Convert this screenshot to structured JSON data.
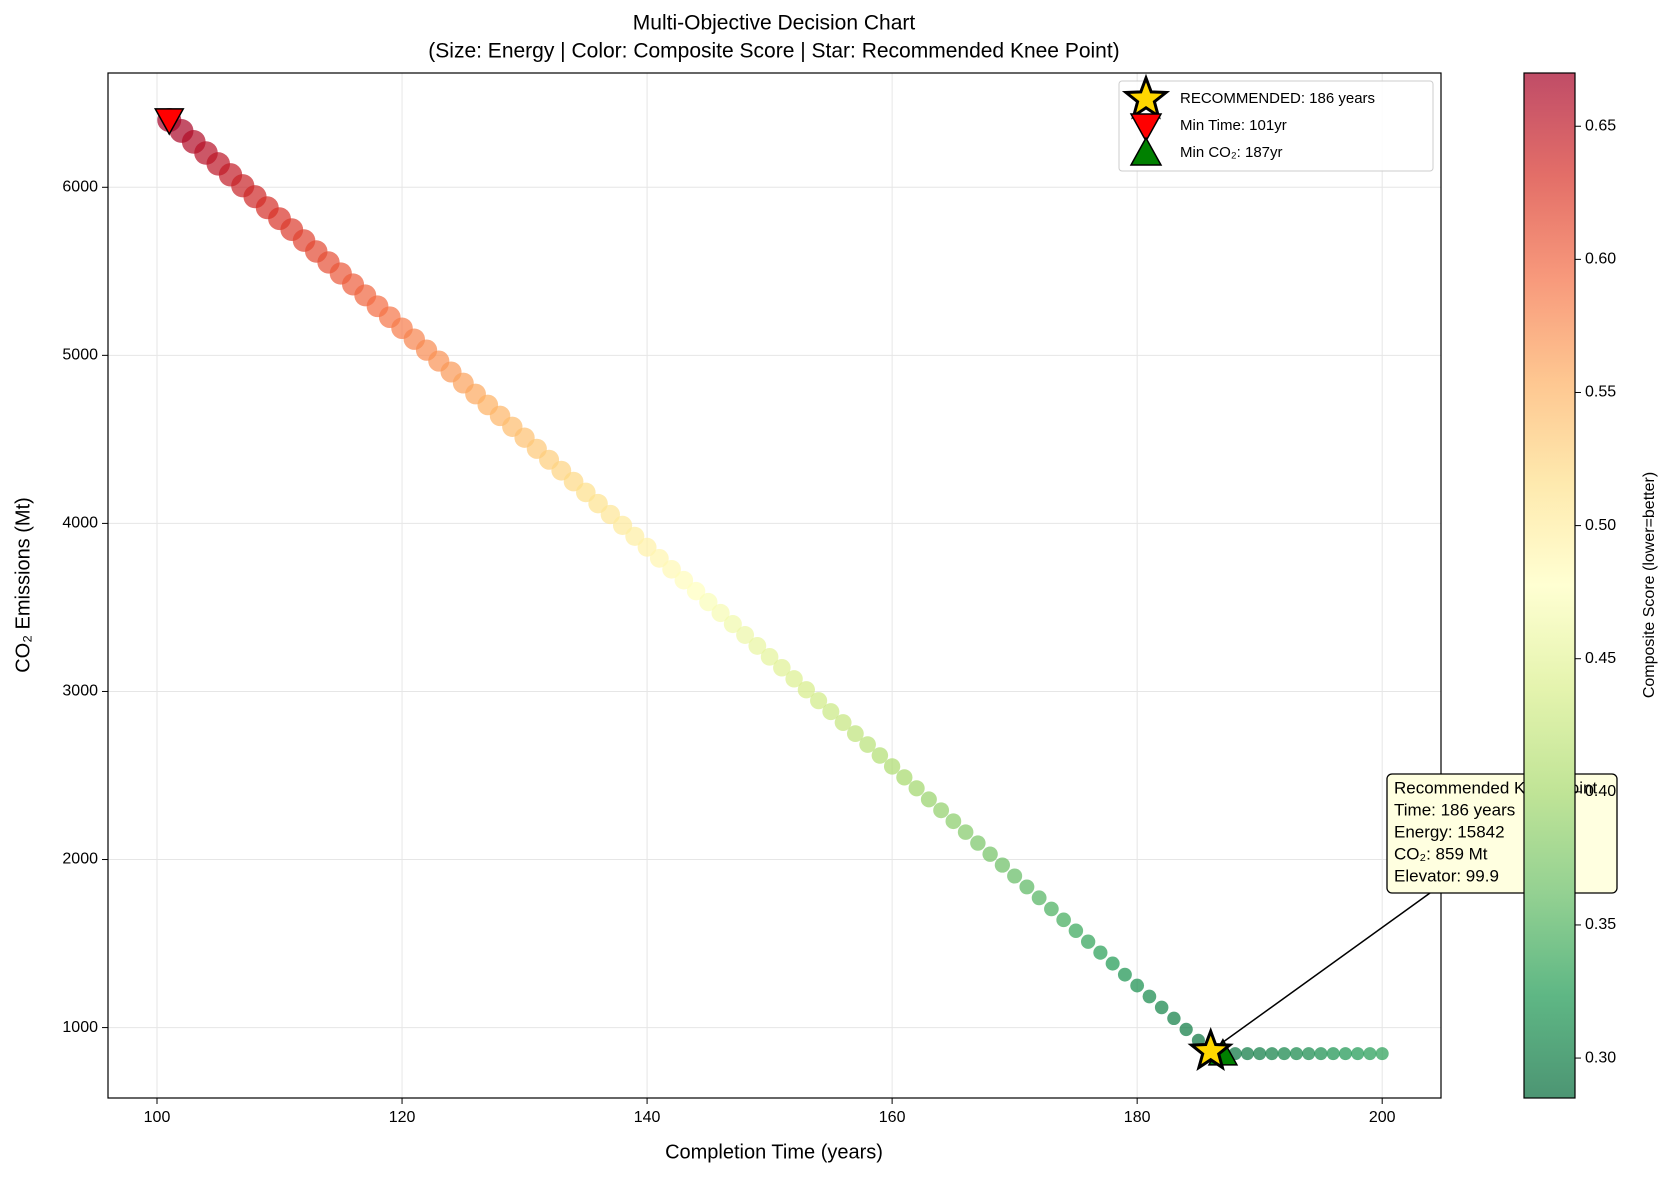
{
  "chart_data": {
    "type": "scatter",
    "title": "Multi-Objective Decision Chart",
    "subtitle": "(Size: Energy | Color: Composite Score | Star: Recommended Knee Point)",
    "xlabel": "Completion Time (years)",
    "ylabel": "CO₂ Emissions (Mt)",
    "xlim": [
      96,
      204.8
    ],
    "ylim": [
      581,
      6680
    ],
    "xticks": [
      100,
      120,
      140,
      160,
      180,
      200
    ],
    "yticks": [
      1000,
      2000,
      3000,
      4000,
      5000,
      6000
    ],
    "grid": true,
    "x": [
      101,
      102,
      103,
      104,
      105,
      106,
      107,
      108,
      109,
      110,
      111,
      112,
      113,
      114,
      115,
      116,
      117,
      118,
      119,
      120,
      121,
      122,
      123,
      124,
      125,
      126,
      127,
      128,
      129,
      130,
      131,
      132,
      133,
      134,
      135,
      136,
      137,
      138,
      139,
      140,
      141,
      142,
      143,
      144,
      145,
      146,
      147,
      148,
      149,
      150,
      151,
      152,
      153,
      154,
      155,
      156,
      157,
      158,
      159,
      160,
      161,
      162,
      163,
      164,
      165,
      166,
      167,
      168,
      169,
      170,
      171,
      172,
      173,
      174,
      175,
      176,
      177,
      178,
      179,
      180,
      181,
      182,
      183,
      184,
      185,
      186,
      187,
      188,
      189,
      190,
      191,
      192,
      193,
      194,
      195,
      196,
      197,
      198,
      199,
      200
    ],
    "y": [
      6400,
      6335,
      6270,
      6204,
      6139,
      6074,
      6009,
      5944,
      5878,
      5813,
      5748,
      5683,
      5618,
      5553,
      5487,
      5422,
      5357,
      5292,
      5227,
      5161,
      5096,
      5031,
      4966,
      4901,
      4835,
      4770,
      4705,
      4640,
      4575,
      4510,
      4444,
      4379,
      4314,
      4249,
      4184,
      4118,
      4053,
      3988,
      3923,
      3858,
      3792,
      3727,
      3662,
      3597,
      3532,
      3467,
      3401,
      3336,
      3271,
      3206,
      3141,
      3075,
      3010,
      2945,
      2880,
      2815,
      2749,
      2684,
      2619,
      2554,
      2489,
      2424,
      2358,
      2293,
      2228,
      2163,
      2098,
      2032,
      1967,
      1902,
      1837,
      1772,
      1706,
      1641,
      1576,
      1511,
      1446,
      1381,
      1315,
      1250,
      1185,
      1120,
      1055,
      989,
      924,
      859,
      845,
      845,
      845,
      845,
      845,
      845,
      845,
      845,
      845,
      845,
      845,
      845,
      845,
      845
    ],
    "energy": [
      40000,
      39700,
      39400,
      39100,
      38900,
      38600,
      38300,
      38000,
      37700,
      37400,
      37200,
      36900,
      36600,
      36300,
      36000,
      35700,
      35500,
      35200,
      34900,
      34600,
      34300,
      34000,
      33700,
      33500,
      33200,
      32900,
      32600,
      32300,
      32000,
      31800,
      31500,
      31200,
      30900,
      30600,
      30300,
      30100,
      29800,
      29500,
      29200,
      28900,
      28600,
      28300,
      28100,
      27800,
      27500,
      27200,
      26900,
      26600,
      26400,
      26100,
      25800,
      25500,
      25200,
      24900,
      24700,
      24400,
      24100,
      23800,
      23500,
      23200,
      22900,
      22700,
      22400,
      22100,
      21800,
      21500,
      21200,
      21000,
      20700,
      20400,
      20100,
      19800,
      19500,
      19300,
      19000,
      18700,
      18400,
      18100,
      17800,
      17500,
      17300,
      17000,
      16700,
      16400,
      16100,
      15842,
      15800,
      15800,
      15800,
      15800,
      15800,
      15800,
      15800,
      15800,
      15800,
      15800,
      15800,
      15800,
      15800,
      15800
    ],
    "score": [
      0.67,
      0.666,
      0.661,
      0.657,
      0.652,
      0.648,
      0.643,
      0.639,
      0.634,
      0.63,
      0.625,
      0.621,
      0.616,
      0.612,
      0.607,
      0.603,
      0.598,
      0.594,
      0.589,
      0.585,
      0.58,
      0.576,
      0.571,
      0.567,
      0.562,
      0.558,
      0.553,
      0.549,
      0.544,
      0.54,
      0.535,
      0.531,
      0.526,
      0.522,
      0.517,
      0.513,
      0.508,
      0.504,
      0.499,
      0.495,
      0.49,
      0.486,
      0.481,
      0.477,
      0.472,
      0.468,
      0.463,
      0.459,
      0.454,
      0.45,
      0.445,
      0.441,
      0.436,
      0.432,
      0.427,
      0.423,
      0.418,
      0.414,
      0.409,
      0.405,
      0.4,
      0.396,
      0.391,
      0.387,
      0.382,
      0.378,
      0.373,
      0.369,
      0.364,
      0.36,
      0.355,
      0.351,
      0.346,
      0.342,
      0.337,
      0.333,
      0.328,
      0.324,
      0.319,
      0.315,
      0.31,
      0.306,
      0.301,
      0.297,
      0.292,
      0.288,
      0.29,
      0.293,
      0.296,
      0.299,
      0.302,
      0.305,
      0.308,
      0.311,
      0.314,
      0.317,
      0.32,
      0.323,
      0.326,
      0.329
    ],
    "colormap": "RdYlGn_r",
    "clim": [
      0.285,
      0.67
    ],
    "cticks": [
      {
        "value": 0.3,
        "label": "0.30"
      },
      {
        "value": 0.35,
        "label": "0.35"
      },
      {
        "value": 0.4,
        "label": "0.40"
      },
      {
        "value": 0.45,
        "label": "0.45"
      },
      {
        "value": 0.5,
        "label": "0.50"
      },
      {
        "value": 0.55,
        "label": "0.55"
      },
      {
        "value": 0.6,
        "label": "0.60"
      },
      {
        "value": 0.65,
        "label": "0.65"
      }
    ],
    "colorbar_label": "Composite Score (lower=better)",
    "markers": [
      {
        "name": "RECOMMENDED: 186 years",
        "marker": "star",
        "color": "#ffd700",
        "x": 186,
        "y": 859
      },
      {
        "name": "Min Time: 101yr",
        "marker": "triangle-down",
        "color": "#ff0000",
        "x": 101,
        "y": 6400
      },
      {
        "name": "Min CO₂: 187yr",
        "marker": "triangle-up",
        "color": "#008000",
        "x": 187,
        "y": 845
      }
    ],
    "legend": "upper right",
    "annotation": [
      "Recommended Knee Point",
      "Time: 186 years",
      "Energy: 15842",
      "CO₂: 859 Mt",
      "Elevator: 99.9"
    ]
  }
}
